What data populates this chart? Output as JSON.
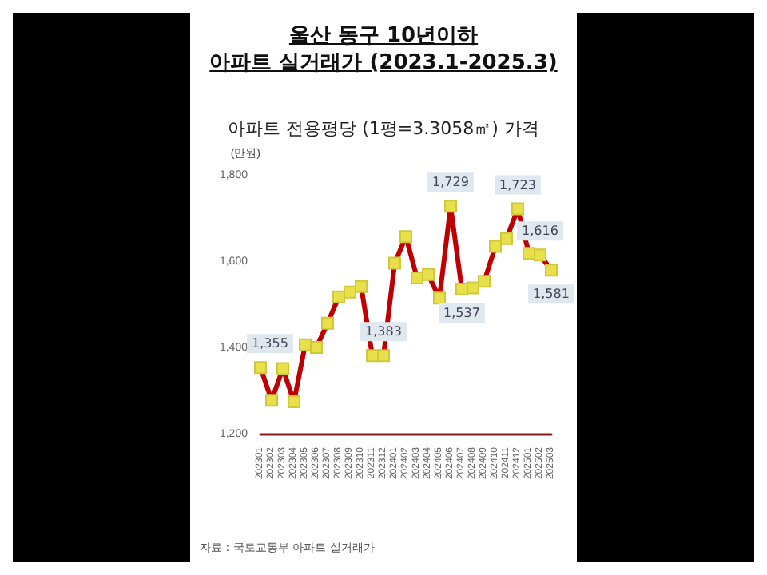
{
  "chart_data": {
    "type": "line",
    "title": "울산 동구 10년이하\n아파트 실거래가 (2023.1-2025.3)",
    "subtitle": "아파트 전용평당 (1평=3.3058㎡) 가격",
    "ylabel": "(만원)",
    "categories": [
      "202301",
      "202302",
      "202303",
      "202304",
      "202305",
      "202306",
      "202307",
      "202308",
      "202309",
      "202310",
      "202311",
      "202312",
      "202401",
      "202402",
      "202403",
      "202404",
      "202405",
      "202406",
      "202407",
      "202408",
      "202409",
      "202410",
      "202411",
      "202412",
      "202501",
      "202502",
      "202503"
    ],
    "series": [
      {
        "color": "#c00000",
        "values": [
          1355,
          1279,
          1353,
          1276,
          1408,
          1402,
          1458,
          1519,
          1530,
          1543,
          1383,
          1383,
          1597,
          1659,
          1563,
          1571,
          1516,
          1729,
          1537,
          1540,
          1555,
          1636,
          1654,
          1723,
          1620,
          1616,
          1581
        ],
        "value_labels": [
          "1,355",
          null,
          null,
          null,
          null,
          null,
          null,
          null,
          null,
          null,
          null,
          "1,383",
          null,
          null,
          null,
          null,
          null,
          "1,729",
          "1,537",
          null,
          null,
          null,
          null,
          "1,723",
          null,
          "1,616",
          "1,581"
        ]
      }
    ],
    "ylim": [
      1200,
      1800
    ],
    "yticks": [
      {
        "value": 1200,
        "label": "1,200"
      },
      {
        "value": 1400,
        "label": "1,400"
      },
      {
        "value": 1600,
        "label": "1,600"
      },
      {
        "value": 1800,
        "label": "1,800"
      }
    ],
    "grid": false,
    "marker": "square",
    "line_style": "solid",
    "annotations": [
      "자료 : 국토교통부 아파트 실거래가"
    ]
  }
}
